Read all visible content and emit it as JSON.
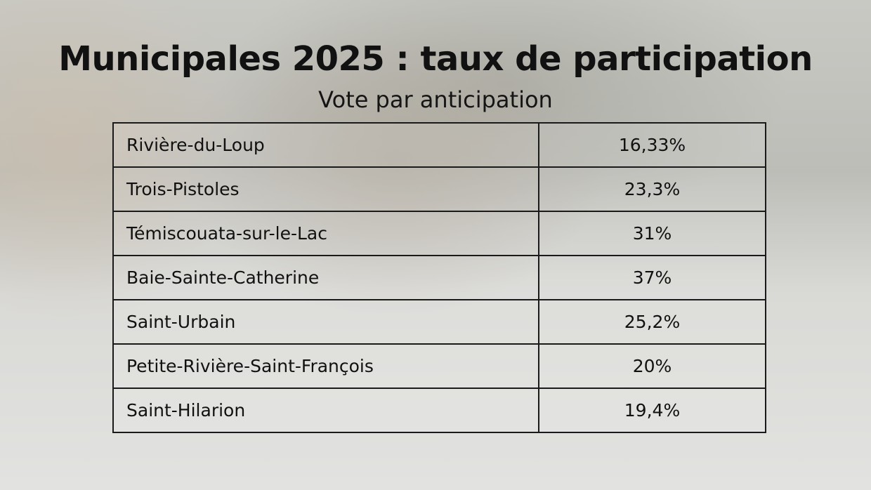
{
  "header": {
    "title": "Municipales 2025 : taux de participation",
    "subtitle": "Vote par anticipation"
  },
  "table": {
    "rows": [
      [
        "Rivière-du-Loup",
        "16,33%"
      ],
      [
        "Trois-Pistoles",
        "23,3%"
      ],
      [
        "Témiscouata-sur-le-Lac",
        "31%"
      ],
      [
        "Baie-Sainte-Catherine",
        "37%"
      ],
      [
        "Saint-Urbain",
        "25,2%"
      ],
      [
        "Petite-Rivière-Saint-François",
        "20%"
      ],
      [
        "Saint-Hilarion",
        "19,4%"
      ]
    ]
  }
}
